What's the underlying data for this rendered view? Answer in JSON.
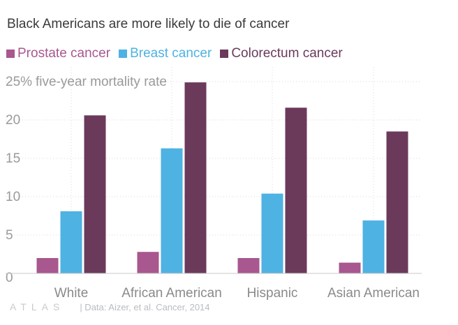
{
  "title": "Black Americans are more likely to die of cancer",
  "footer": {
    "logo": "ATLAS",
    "source": "| Data: Aizer, et al. Cancer, 2014"
  },
  "colors": {
    "prostate": "#a8578f",
    "breast": "#4eb2e3",
    "colorectum": "#6b3a5b",
    "grid": "#d9d9d9",
    "tick_text": "#9a9a9a",
    "category_text": "#8a8a8a"
  },
  "chart_data": {
    "type": "bar",
    "ylabel": "five-year mortality rate",
    "ylim": [
      0,
      25
    ],
    "yticks": [
      "0",
      "5",
      "10",
      "15",
      "20",
      "25%"
    ],
    "ytick_values": [
      0,
      5,
      10,
      15,
      20,
      25
    ],
    "categories": [
      "White",
      "African American",
      "Hispanic",
      "Asian American"
    ],
    "series": [
      {
        "name": "Prostate cancer",
        "values": [
          2.0,
          2.8,
          2.0,
          1.4
        ]
      },
      {
        "name": "Breast cancer",
        "values": [
          8.1,
          16.3,
          10.4,
          6.9
        ]
      },
      {
        "name": "Colorectum cancer",
        "values": [
          20.6,
          24.9,
          21.6,
          18.5
        ]
      }
    ],
    "legend_position": "top-left",
    "grid": true
  }
}
